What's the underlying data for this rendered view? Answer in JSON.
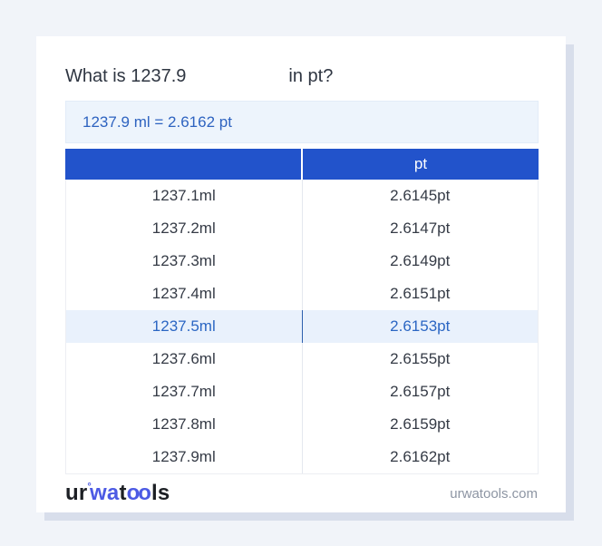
{
  "header": {
    "question_prefix": "What is 1237.9",
    "question_suffix": "in pt?"
  },
  "result_box": {
    "text": "1237.9 ml = 2.6162 pt"
  },
  "conversion_table": {
    "headers": {
      "ml": "",
      "pt": "pt"
    },
    "highlighted_row_index": 4,
    "rows": [
      {
        "ml": "1237.1ml",
        "pt": "2.6145pt"
      },
      {
        "ml": "1237.2ml",
        "pt": "2.6147pt"
      },
      {
        "ml": "1237.3ml",
        "pt": "2.6149pt"
      },
      {
        "ml": "1237.4ml",
        "pt": "2.6151pt"
      },
      {
        "ml": "1237.5ml",
        "pt": "2.6153pt"
      },
      {
        "ml": "1237.6ml",
        "pt": "2.6155pt"
      },
      {
        "ml": "1237.7ml",
        "pt": "2.6157pt"
      },
      {
        "ml": "1237.8ml",
        "pt": "2.6159pt"
      },
      {
        "ml": "1237.9ml",
        "pt": "2.6162pt"
      }
    ]
  },
  "footer": {
    "logo": {
      "seg1": "ur",
      "degree_mark": "°",
      "seg2": "wa",
      "seg3": "t",
      "seg4": "oo",
      "seg5": "ls"
    },
    "website": "urwatools.com"
  },
  "colors": {
    "header_blue": "#2253cb",
    "highlight_row_bg": "#e9f1fc",
    "highlight_text_blue": "#2b66c3",
    "result_box_bg": "#edf4fc",
    "logo_blue": "#4c5ae4",
    "page_bg": "#f1f4f9",
    "card_shadow": "#d8deeb"
  }
}
